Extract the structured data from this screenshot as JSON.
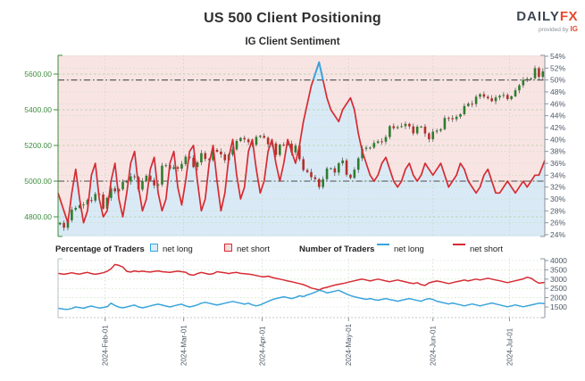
{
  "header": {
    "title": "US 500 Client Positioning",
    "subtitle": "IG Client Sentiment",
    "logo": {
      "daily": "DAILY",
      "fx": "FX",
      "provided_by": "provided by",
      "ig": "IG"
    }
  },
  "legend": {
    "percentage_label": "Percentage of Traders",
    "number_label": "Number of Traders",
    "net_long": "net long",
    "net_short": "net short"
  },
  "colors": {
    "pink_fill": "#f9e4e4",
    "blue_fill": "#d9eaf6",
    "net_short_line": "#d62b33",
    "net_long_line": "#31a6e0",
    "candle_up": "#2e7d2e",
    "candle_down": "#b3302a",
    "axis_green": "#3e8e3e",
    "axis_gray": "#4d5866",
    "grid_green": "#bedeb4",
    "grid_gray": "#c8cfc8",
    "dashdot": "#4a4a4a",
    "traders_short": "#d62b33",
    "traders_long": "#3aa4dc"
  },
  "chart_data": [
    {
      "type": "candlestick",
      "title": "US 500 price with IG client sentiment (percentage of traders)",
      "x_labels": [
        "2024-Feb-01",
        "2024-Mar-01",
        "2024-Apr-01",
        "2024-May-01",
        "2024-Jun-01",
        "2024-Jul-01"
      ],
      "month_indices": [
        12,
        32,
        52,
        74,
        95.5,
        115
      ],
      "price_axis": {
        "labels": [
          "5600.00",
          "5400.00",
          "5200.00",
          "5000.00",
          "4800.00"
        ],
        "values": [
          5600,
          5400,
          5200,
          5000,
          4800
        ]
      },
      "percent_axis": {
        "labels": [
          "54%",
          "52%",
          "50%",
          "48%",
          "46%",
          "44%",
          "42%",
          "40%",
          "38%",
          "36%",
          "34%",
          "32%",
          "30%",
          "28%",
          "26%",
          "24%"
        ],
        "values": [
          54,
          52,
          50,
          48,
          46,
          44,
          42,
          40,
          38,
          36,
          34,
          32,
          30,
          28,
          26,
          24
        ],
        "range": [
          24,
          54
        ]
      },
      "dashdot_levels_pct": [
        50,
        33
      ],
      "series": [
        {
          "name": "US 500 daily close",
          "kind": "candlestick",
          "values": [
            4766,
            4739,
            4781,
            4840,
            4850,
            4865,
            4869,
            4894,
            4891,
            4928,
            4925,
            4846,
            4906,
            4959,
            4943,
            4954,
            4995,
            4998,
            5027,
            5022,
            4953,
            5001,
            5030,
            5006,
            4976,
            4981,
            5087,
            5089,
            5069,
            5078,
            5070,
            5096,
            5137,
            5131,
            5079,
            5105,
            5157,
            5124,
            5118,
            5175,
            5165,
            5150,
            5117,
            5149,
            5178,
            5225,
            5242,
            5234,
            5218,
            5204,
            5248,
            5254,
            5243,
            5206,
            5211,
            5147,
            5204,
            5202,
            5210,
            5161,
            5199,
            5123,
            5062,
            5051,
            5022,
            5011,
            4967,
            5011,
            5071,
            5072,
            5048,
            5100,
            5116,
            5036,
            5018,
            5064,
            5128,
            5181,
            5187,
            5188,
            5214,
            5223,
            5221,
            5247,
            5308,
            5297,
            5303,
            5308,
            5321,
            5307,
            5268,
            5305,
            5306,
            5267,
            5235,
            5277,
            5283,
            5291,
            5354,
            5353,
            5347,
            5361,
            5375,
            5421,
            5434,
            5432,
            5473,
            5487,
            5473,
            5464,
            5448,
            5469,
            5478,
            5483,
            5460,
            5475,
            5509,
            5537,
            5567,
            5573,
            5576,
            5633,
            5584,
            5615
          ]
        },
        {
          "name": "percentage of traders net long",
          "kind": "area-line",
          "values": [
            31,
            28,
            26,
            31,
            35,
            30,
            26,
            28,
            34,
            36,
            30,
            27,
            28,
            33,
            36,
            30,
            27,
            31,
            36,
            38,
            32,
            28,
            30,
            35,
            37,
            31,
            28,
            30,
            36,
            38,
            32,
            29,
            33,
            38,
            39,
            33,
            28,
            30,
            36,
            39,
            33,
            28,
            31,
            37,
            40,
            34,
            30,
            32,
            38,
            40,
            35,
            31,
            33,
            38,
            40,
            36,
            33,
            36,
            40,
            38,
            36,
            39,
            43,
            46,
            49,
            51,
            53,
            50,
            47,
            45,
            44,
            43,
            45,
            46,
            47,
            45,
            41,
            38,
            36,
            34,
            33,
            34,
            36,
            37,
            35,
            33,
            32,
            33,
            35,
            36,
            34,
            33,
            34,
            36,
            35,
            34,
            35,
            36,
            34,
            32,
            33,
            34,
            36,
            35,
            33,
            32,
            31,
            32,
            34,
            35,
            33,
            31,
            31,
            32,
            33,
            32,
            31,
            32,
            33,
            32,
            33,
            34,
            34,
            36.5
          ]
        }
      ]
    },
    {
      "type": "line",
      "title": "Number of Traders",
      "y_axis": {
        "labels": [
          "4000",
          "3500",
          "3000",
          "2500",
          "2000",
          "1500"
        ],
        "values": [
          4000,
          3500,
          3000,
          2500,
          2000,
          1500
        ]
      },
      "series": [
        {
          "name": "net short",
          "values": [
            3310,
            3260,
            3300,
            3340,
            3300,
            3270,
            3320,
            3360,
            3300,
            3260,
            3300,
            3340,
            3420,
            3560,
            3790,
            3740,
            3650,
            3420,
            3380,
            3440,
            3400,
            3430,
            3400,
            3380,
            3420,
            3440,
            3400,
            3380,
            3360,
            3400,
            3430,
            3400,
            3370,
            3240,
            3210,
            3300,
            3360,
            3310,
            3260,
            3290,
            3400,
            3370,
            3340,
            3300,
            3340,
            3360,
            3310,
            3290,
            3270,
            3240,
            3190,
            3150,
            3120,
            3160,
            3090,
            3040,
            3000,
            2950,
            2900,
            2860,
            2810,
            2760,
            2700,
            2620,
            2520,
            2470,
            2420,
            2510,
            2560,
            2620,
            2680,
            2720,
            2760,
            2810,
            2860,
            2910,
            2960,
            3000,
            2950,
            2900,
            2950,
            3000,
            2950,
            2900,
            2860,
            2910,
            2950,
            2900,
            2850,
            2800,
            2760,
            2810,
            2700,
            2660,
            2800,
            2850,
            2900,
            2860,
            2810,
            2760,
            2810,
            2860,
            2900,
            2950,
            2900,
            2950,
            3000,
            2950,
            3000,
            3050,
            3000,
            2950,
            2910,
            2860,
            2810,
            2860,
            2910,
            2960,
            3010,
            3100,
            3050,
            2900,
            2780,
            2820
          ]
        },
        {
          "name": "net long",
          "values": [
            1430,
            1380,
            1370,
            1420,
            1500,
            1460,
            1430,
            1500,
            1550,
            1490,
            1440,
            1470,
            1510,
            1700,
            1580,
            1490,
            1450,
            1500,
            1560,
            1600,
            1500,
            1450,
            1500,
            1560,
            1610,
            1650,
            1600,
            1550,
            1500,
            1560,
            1610,
            1650,
            1560,
            1500,
            1550,
            1610,
            1700,
            1750,
            1700,
            1650,
            1600,
            1650,
            1700,
            1750,
            1800,
            1750,
            1700,
            1650,
            1700,
            1610,
            1560,
            1610,
            1700,
            1800,
            1890,
            1950,
            2000,
            2050,
            2000,
            1950,
            2010,
            2100,
            2060,
            2150,
            2210,
            2300,
            2400,
            2350,
            2260,
            2300,
            2350,
            2400,
            2300,
            2200,
            2110,
            2050,
            2000,
            1950,
            1910,
            1950,
            1900,
            1860,
            1910,
            1950,
            1900,
            1860,
            1810,
            1860,
            1910,
            1950,
            1900,
            1850,
            1810,
            1900,
            1950,
            1900,
            1810,
            1760,
            1710,
            1660,
            1710,
            1660,
            1610,
            1560,
            1610,
            1660,
            1610,
            1560,
            1610,
            1660,
            1710,
            1660,
            1610,
            1560,
            1510,
            1560,
            1610,
            1560,
            1510,
            1560,
            1600,
            1650,
            1700,
            1680
          ]
        }
      ]
    }
  ]
}
